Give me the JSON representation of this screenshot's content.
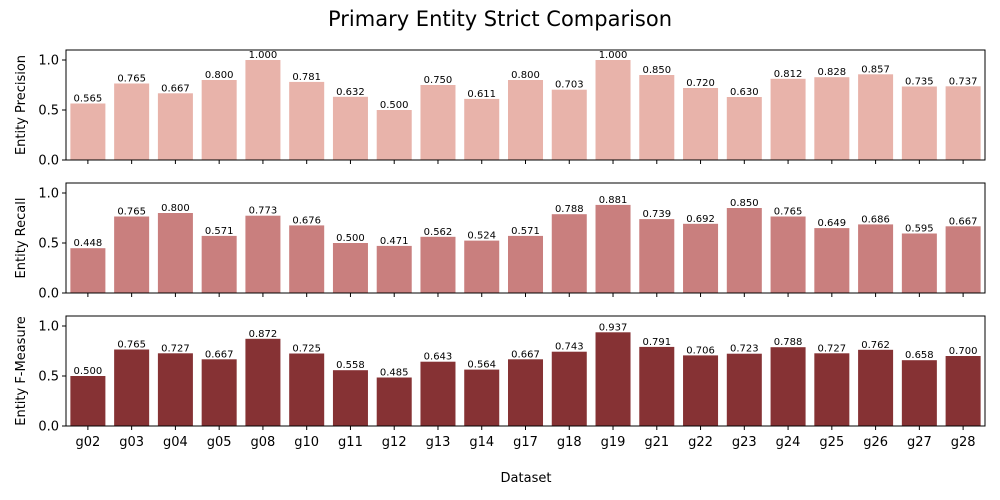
{
  "chart_data": {
    "type": "bar",
    "title": "Primary Entity Strict Comparison",
    "xlabel": "Dataset",
    "categories": [
      "g02",
      "g03",
      "g04",
      "g05",
      "g08",
      "g10",
      "g11",
      "g12",
      "g13",
      "g14",
      "g17",
      "g18",
      "g19",
      "g21",
      "g22",
      "g23",
      "g24",
      "g25",
      "g26",
      "g27",
      "g28"
    ],
    "ylim": [
      0,
      1.1
    ],
    "yticks": [
      "0.0",
      "0.5",
      "1.0"
    ],
    "grid": false,
    "panels": [
      {
        "ylabel": "Entity Precision",
        "color": "#e8b3aa",
        "values": [
          0.565,
          0.765,
          0.667,
          0.8,
          1.0,
          0.781,
          0.632,
          0.5,
          0.75,
          0.611,
          0.8,
          0.703,
          1.0,
          0.85,
          0.72,
          0.63,
          0.812,
          0.828,
          0.857,
          0.735,
          0.737
        ],
        "labels": [
          "0.565",
          "0.765",
          "0.667",
          "0.800",
          "1.000",
          "0.781",
          "0.632",
          "0.500",
          "0.750",
          "0.611",
          "0.800",
          "0.703",
          "1.000",
          "0.850",
          "0.720",
          "0.630",
          "0.812",
          "0.828",
          "0.857",
          "0.735",
          "0.737"
        ]
      },
      {
        "ylabel": "Entity Recall",
        "color": "#c97f7e",
        "values": [
          0.448,
          0.765,
          0.8,
          0.571,
          0.773,
          0.676,
          0.5,
          0.471,
          0.562,
          0.524,
          0.571,
          0.788,
          0.881,
          0.739,
          0.692,
          0.85,
          0.765,
          0.649,
          0.686,
          0.595,
          0.667
        ],
        "labels": [
          "0.448",
          "0.765",
          "0.800",
          "0.571",
          "0.773",
          "0.676",
          "0.500",
          "0.471",
          "0.562",
          "0.524",
          "0.571",
          "0.788",
          "0.881",
          "0.739",
          "0.692",
          "0.850",
          "0.765",
          "0.649",
          "0.686",
          "0.595",
          "0.667"
        ]
      },
      {
        "ylabel": "Entity F-Measure",
        "color": "#863234",
        "values": [
          0.5,
          0.765,
          0.727,
          0.667,
          0.872,
          0.725,
          0.558,
          0.485,
          0.643,
          0.564,
          0.667,
          0.743,
          0.937,
          0.791,
          0.706,
          0.723,
          0.788,
          0.727,
          0.762,
          0.658,
          0.7
        ],
        "labels": [
          "0.500",
          "0.765",
          "0.727",
          "0.667",
          "0.872",
          "0.725",
          "0.558",
          "0.485",
          "0.643",
          "0.564",
          "0.667",
          "0.743",
          "0.937",
          "0.791",
          "0.706",
          "0.723",
          "0.788",
          "0.727",
          "0.762",
          "0.658",
          "0.700"
        ]
      }
    ]
  }
}
